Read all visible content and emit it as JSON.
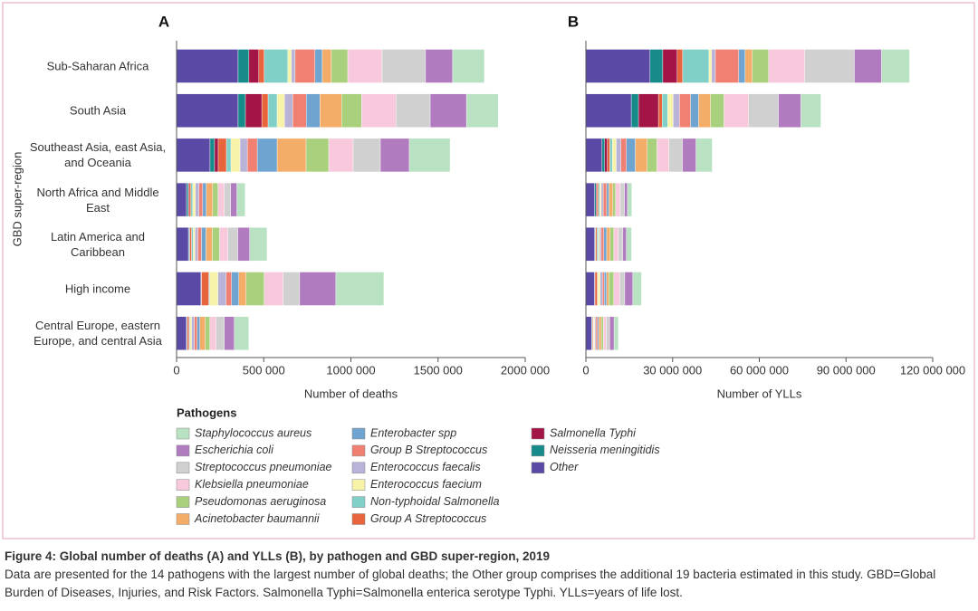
{
  "chart_data": [
    {
      "type": "stacked-barh",
      "panel": "A",
      "xlabel": "Number of deaths",
      "ylabel": "GBD super-region",
      "legend_title": "Pathogens",
      "categories": [
        "Sub-Saharan Africa",
        "South Asia",
        "Southeast Asia, east Asia, and Oceania",
        "North Africa and Middle East",
        "Latin America and Caribbean",
        "High income",
        "Central Europe, eastern Europe, and central Asia"
      ],
      "xlim": [
        0,
        2000000
      ],
      "xticks": [
        0,
        {
          "value": 500000,
          "label": "500 000"
        },
        {
          "value": 1000000,
          "label": "1000 000"
        },
        {
          "value": 1500000,
          "label": "1500 000"
        },
        {
          "value": 2000000,
          "label": "2000 000"
        }
      ],
      "series": [
        {
          "name": "Staphylococcus aureus",
          "color": "#b9e2c3",
          "values": [
            182000,
            182000,
            234000,
            47000,
            100000,
            275000,
            83000
          ]
        },
        {
          "name": "Escherichia coli",
          "color": "#b07cbf",
          "values": [
            156000,
            208000,
            166000,
            36000,
            68000,
            208000,
            57000
          ]
        },
        {
          "name": "Streptococcus pneumoniae",
          "color": "#d0d0d0",
          "values": [
            249000,
            197000,
            156000,
            36000,
            57000,
            94000,
            47000
          ]
        },
        {
          "name": "Klebsiella pneumoniae",
          "color": "#f8c9dc",
          "values": [
            197000,
            197000,
            140000,
            36000,
            47000,
            109000,
            36000
          ]
        },
        {
          "name": "Pseudomonas aeruginosa",
          "color": "#a8d07d",
          "values": [
            94000,
            114000,
            130000,
            31000,
            42000,
            104000,
            26000
          ]
        },
        {
          "name": "Acinetobacter baumannii",
          "color": "#f4ad69",
          "values": [
            52000,
            125000,
            166000,
            36000,
            36000,
            42000,
            31000
          ]
        },
        {
          "name": "Enterobacter spp",
          "color": "#6fa4d0",
          "values": [
            42000,
            78000,
            114000,
            21000,
            26000,
            42000,
            16000
          ]
        },
        {
          "name": "Group B Streptococcus",
          "color": "#f08172",
          "values": [
            114000,
            78000,
            57000,
            21000,
            21000,
            31000,
            16000
          ]
        },
        {
          "name": "Enterococcus faecalis",
          "color": "#b9b3d8",
          "values": [
            21000,
            47000,
            42000,
            21000,
            16000,
            47000,
            16000
          ]
        },
        {
          "name": "Enterococcus faecium",
          "color": "#f7f3a9",
          "values": [
            21000,
            42000,
            52000,
            16000,
            10000,
            47000,
            10000
          ]
        },
        {
          "name": "Non-typhoidal Salmonella",
          "color": "#80d0c8",
          "values": [
            135000,
            52000,
            26000,
            10000,
            10000,
            5000,
            5000
          ]
        },
        {
          "name": "Group A Streptococcus",
          "color": "#e8643d",
          "values": [
            31000,
            36000,
            47000,
            10000,
            10000,
            42000,
            10000
          ]
        },
        {
          "name": "Salmonella Typhi",
          "color": "#a31546",
          "values": [
            57000,
            94000,
            21000,
            5000,
            3000,
            1000,
            1000
          ]
        },
        {
          "name": "Neisseria meningitidis",
          "color": "#178a8a",
          "values": [
            62000,
            42000,
            26000,
            10000,
            5000,
            2000,
            3000
          ]
        },
        {
          "name": "Other",
          "color": "#5b4aa5",
          "values": [
            353000,
            353000,
            192000,
            57000,
            68000,
            140000,
            57000
          ]
        }
      ]
    },
    {
      "type": "stacked-barh",
      "panel": "B",
      "xlabel": "Number of YLLs",
      "xlim": [
        0,
        120000000
      ],
      "xticks": [
        0,
        {
          "value": 30000000,
          "label": "30 000 000"
        },
        {
          "value": 60000000,
          "label": "60 000 000"
        },
        {
          "value": 90000000,
          "label": "90 000 000"
        },
        {
          "value": 120000000,
          "label": "120 000 000"
        }
      ],
      "series": [
        {
          "values": [
            9700000,
            6900000,
            5600000,
            1500000,
            1800000,
            3000000,
            1500000
          ]
        },
        {
          "values": [
            9400000,
            7800000,
            4700000,
            1000000,
            1200000,
            2800000,
            1500000
          ]
        },
        {
          "values": [
            17200000,
            10300000,
            4700000,
            1500000,
            1600000,
            1800000,
            1200000
          ]
        },
        {
          "values": [
            12500000,
            8500000,
            4100000,
            1600000,
            1500000,
            2000000,
            1000000
          ]
        },
        {
          "values": [
            5600000,
            4700000,
            3400000,
            1000000,
            1300000,
            1700000,
            700000
          ]
        },
        {
          "values": [
            2500000,
            4100000,
            4100000,
            1300000,
            1200000,
            800000,
            900000
          ]
        },
        {
          "values": [
            2200000,
            2800000,
            3100000,
            800000,
            1000000,
            800000,
            400000
          ]
        },
        {
          "values": [
            8100000,
            3800000,
            1900000,
            1200000,
            900000,
            600000,
            600000
          ]
        },
        {
          "values": [
            1300000,
            2200000,
            1600000,
            700000,
            600000,
            800000,
            400000
          ]
        },
        {
          "values": [
            900000,
            1900000,
            1300000,
            500000,
            400000,
            800000,
            300000
          ]
        },
        {
          "values": [
            9100000,
            1900000,
            900000,
            500000,
            500000,
            200000,
            200000
          ]
        },
        {
          "values": [
            1900000,
            1300000,
            900000,
            500000,
            500000,
            800000,
            300000
          ]
        },
        {
          "values": [
            5000000,
            6900000,
            900000,
            300000,
            100000,
            50000,
            50000
          ]
        },
        {
          "values": [
            4400000,
            2500000,
            900000,
            500000,
            200000,
            100000,
            200000
          ]
        },
        {
          "values": [
            22200000,
            15700000,
            5600000,
            3000000,
            3000000,
            3000000,
            2000000
          ]
        }
      ]
    }
  ],
  "caption": {
    "title": "Figure 4: Global number of deaths (A) and YLLs (B), by pathogen and GBD super-region, 2019",
    "text": "Data are presented for the 14 pathogens with the largest number of global deaths; the Other group comprises the additional 19 bacteria estimated in this study. GBD=Global Burden of Diseases, Injuries, and Risk Factors. Salmonella Typhi=Salmonella enterica serotype Typhi. YLLs=years of life lost."
  }
}
